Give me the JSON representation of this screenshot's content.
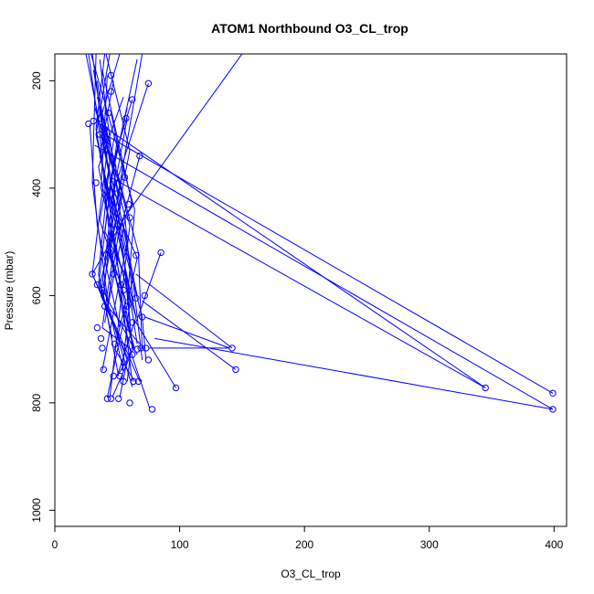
{
  "chart_data": {
    "type": "line",
    "title": "ATOM1 Northbound O3_CL_trop",
    "xlabel": "O3_CL_trop",
    "ylabel": "Pressure (mbar)",
    "xlim": [
      0,
      410
    ],
    "ylim": [
      1030,
      150
    ],
    "y_reversed": true,
    "x_ticks": [
      0,
      100,
      200,
      300,
      400
    ],
    "y_ticks": [
      200,
      400,
      600,
      800,
      1000
    ],
    "grid": false,
    "legend": "none",
    "color": "#0000ff",
    "series": [
      {
        "x": [
          40,
          33,
          47,
          62
        ],
        "y": [
          150,
          290,
          480,
          760
        ]
      },
      {
        "x": [
          27,
          36,
          45,
          60,
          76
        ],
        "y": [
          150,
          300,
          520,
          700,
          810
        ]
      },
      {
        "x": [
          52,
          38,
          60,
          44
        ],
        "y": [
          150,
          260,
          470,
          790
        ]
      },
      {
        "x": [
          31,
          42,
          30,
          55,
          68
        ],
        "y": [
          180,
          330,
          560,
          690,
          760
        ]
      },
      {
        "x": [
          36,
          48,
          37,
          59,
          46
        ],
        "y": [
          160,
          380,
          600,
          720,
          790
        ]
      },
      {
        "x": [
          44,
          33,
          65,
          50
        ],
        "y": [
          150,
          300,
          640,
          750
        ]
      },
      {
        "x": [
          62,
          47,
          35,
          58,
          52
        ],
        "y": [
          235,
          350,
          580,
          720,
          790
        ]
      },
      {
        "x": [
          75,
          45,
          66,
          42
        ],
        "y": [
          205,
          420,
          530,
          790
        ]
      },
      {
        "x": [
          32,
          54,
          38,
          61,
          58
        ],
        "y": [
          250,
          410,
          660,
          700,
          760
        ]
      },
      {
        "x": [
          66,
          41,
          63,
          50
        ],
        "y": [
          160,
          430,
          700,
          750
        ]
      },
      {
        "x": [
          30,
          39,
          56,
          63
        ],
        "y": [
          150,
          300,
          450,
          620
        ]
      },
      {
        "x": [
          58,
          50,
          67,
          70
        ],
        "y": [
          270,
          370,
          520,
          700
        ]
      },
      {
        "x": [
          34,
          44,
          35,
          46
        ],
        "y": [
          200,
          350,
          560,
          680
        ]
      },
      {
        "x": [
          48,
          36,
          57,
          48,
          64
        ],
        "y": [
          300,
          460,
          610,
          700,
          760
        ]
      },
      {
        "x": [
          68,
          52,
          70,
          73
        ],
        "y": [
          340,
          480,
          640,
          720
        ]
      },
      {
        "x": [
          25,
          40,
          58,
          38
        ],
        "y": [
          150,
          330,
          500,
          740
        ]
      },
      {
        "x": [
          33,
          30,
          43,
          62
        ],
        "y": [
          150,
          390,
          620,
          770
        ]
      },
      {
        "x": [
          38,
          62,
          30,
          52
        ],
        "y": [
          180,
          430,
          560,
          680
        ]
      },
      {
        "x": [
          45,
          55,
          42,
          64
        ],
        "y": [
          260,
          370,
          510,
          700
        ]
      },
      {
        "x": [
          29,
          46,
          64,
          58
        ],
        "y": [
          150,
          290,
          440,
          610
        ]
      },
      {
        "x": [
          55,
          35,
          48,
          65
        ],
        "y": [
          230,
          360,
          510,
          640
        ]
      },
      {
        "x": [
          41,
          60,
          39,
          55
        ],
        "y": [
          150,
          330,
          580,
          740
        ]
      },
      {
        "x": [
          37,
          52,
          42,
          68
        ],
        "y": [
          300,
          470,
          620,
          690
        ]
      },
      {
        "x": [
          70,
          50,
          66
        ],
        "y": [
          150,
          420,
          600
        ]
      },
      {
        "x": [
          28,
          34,
          52
        ],
        "y": [
          280,
          470,
          660
        ]
      },
      {
        "x": [
          35,
          44,
          57,
          62
        ],
        "y": [
          240,
          380,
          560,
          700
        ]
      },
      {
        "x": [
          42,
          37,
          60,
          54
        ],
        "y": [
          190,
          400,
          610,
          740
        ]
      },
      {
        "x": [
          50,
          40,
          58,
          66
        ],
        "y": [
          310,
          480,
          570,
          690
        ]
      },
      {
        "x": [
          34,
          49,
          44,
          61
        ],
        "y": [
          230,
          360,
          520,
          680
        ]
      },
      {
        "x": [
          39,
          52,
          36,
          66
        ],
        "y": [
          270,
          430,
          580,
          710
        ]
      },
      {
        "x": [
          47,
          36,
          54,
          60
        ],
        "y": [
          200,
          340,
          500,
          650
        ]
      },
      {
        "x": [
          58,
          44,
          62,
          70
        ],
        "y": [
          250,
          390,
          560,
          720
        ]
      },
      {
        "x": [
          33,
          46,
          39,
          51
        ],
        "y": [
          300,
          450,
          600,
          750
        ]
      },
      {
        "x": [
          85,
          65,
          97
        ],
        "y": [
          520,
          650,
          772
        ]
      },
      {
        "x": [
          65,
          142
        ],
        "y": [
          560,
          698
        ]
      },
      {
        "x": [
          70,
          145
        ],
        "y": [
          610,
          738
        ]
      },
      {
        "x": [
          72,
          140,
          75
        ],
        "y": [
          640,
          698,
          698
        ]
      },
      {
        "x": [
          80,
          399
        ],
        "y": [
          680,
          812
        ]
      },
      {
        "x": [
          36,
          345
        ],
        "y": [
          280,
          772
        ]
      },
      {
        "x": [
          40,
          399
        ],
        "y": [
          300,
          782
        ]
      },
      {
        "x": [
          32,
          399
        ],
        "y": [
          320,
          812
        ]
      },
      {
        "x": [
          45,
          345
        ],
        "y": [
          380,
          772
        ]
      },
      {
        "x": [
          150,
          57,
          40
        ],
        "y": [
          150,
          450,
          650
        ]
      }
    ],
    "points": [
      {
        "x": 27,
        "y": 280
      },
      {
        "x": 31,
        "y": 275
      },
      {
        "x": 36,
        "y": 270
      },
      {
        "x": 40,
        "y": 290
      },
      {
        "x": 43,
        "y": 260
      },
      {
        "x": 62,
        "y": 235
      },
      {
        "x": 75,
        "y": 205
      },
      {
        "x": 45,
        "y": 190
      },
      {
        "x": 45,
        "y": 220
      },
      {
        "x": 57,
        "y": 270
      },
      {
        "x": 33,
        "y": 390
      },
      {
        "x": 59,
        "y": 430
      },
      {
        "x": 68,
        "y": 340
      },
      {
        "x": 60,
        "y": 455
      },
      {
        "x": 51,
        "y": 470
      },
      {
        "x": 85,
        "y": 520
      },
      {
        "x": 65,
        "y": 525
      },
      {
        "x": 30,
        "y": 560
      },
      {
        "x": 34,
        "y": 580
      },
      {
        "x": 38,
        "y": 590
      },
      {
        "x": 44,
        "y": 520
      },
      {
        "x": 55,
        "y": 590
      },
      {
        "x": 40,
        "y": 620
      },
      {
        "x": 65,
        "y": 605
      },
      {
        "x": 34,
        "y": 660
      },
      {
        "x": 70,
        "y": 640
      },
      {
        "x": 37,
        "y": 680
      },
      {
        "x": 38,
        "y": 698
      },
      {
        "x": 48,
        "y": 690
      },
      {
        "x": 62,
        "y": 710
      },
      {
        "x": 69,
        "y": 698
      },
      {
        "x": 73,
        "y": 698
      },
      {
        "x": 142,
        "y": 698
      },
      {
        "x": 145,
        "y": 738
      },
      {
        "x": 39,
        "y": 738
      },
      {
        "x": 47,
        "y": 750
      },
      {
        "x": 52,
        "y": 750
      },
      {
        "x": 55,
        "y": 760
      },
      {
        "x": 63,
        "y": 760
      },
      {
        "x": 67,
        "y": 760
      },
      {
        "x": 75,
        "y": 720
      },
      {
        "x": 97,
        "y": 772
      },
      {
        "x": 42,
        "y": 792
      },
      {
        "x": 45,
        "y": 792
      },
      {
        "x": 51,
        "y": 792
      },
      {
        "x": 60,
        "y": 800
      },
      {
        "x": 78,
        "y": 812
      },
      {
        "x": 345,
        "y": 772
      },
      {
        "x": 399,
        "y": 782
      },
      {
        "x": 399,
        "y": 812
      },
      {
        "x": 53,
        "y": 580
      },
      {
        "x": 47,
        "y": 560
      },
      {
        "x": 62,
        "y": 650
      },
      {
        "x": 58,
        "y": 620
      },
      {
        "x": 66,
        "y": 700
      },
      {
        "x": 72,
        "y": 600
      },
      {
        "x": 36,
        "y": 300
      },
      {
        "x": 41,
        "y": 320
      },
      {
        "x": 50,
        "y": 410
      },
      {
        "x": 56,
        "y": 380
      }
    ]
  }
}
